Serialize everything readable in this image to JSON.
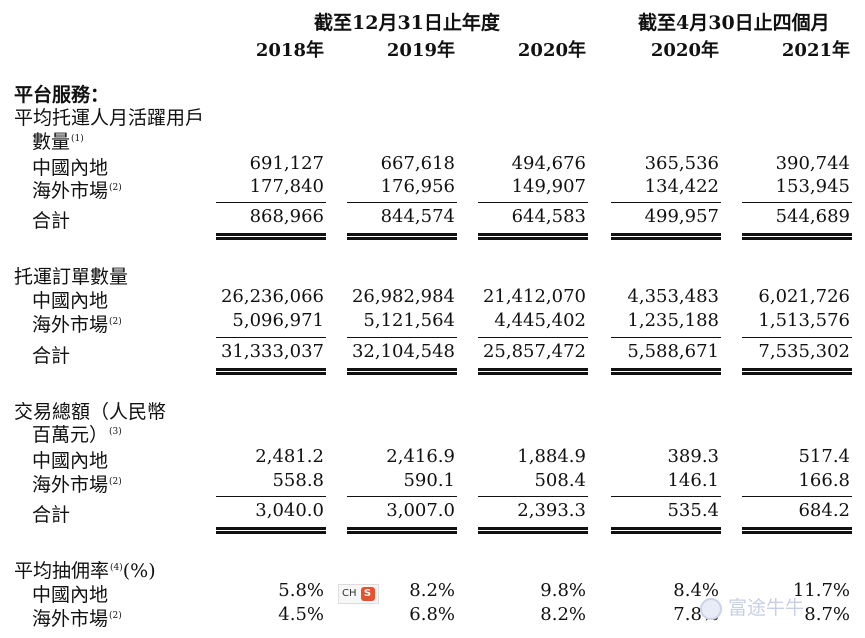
{
  "header": {
    "group_fy": "截至12月31日止年度",
    "group_4m": "截至4月30日止四個月",
    "years": [
      "2018年",
      "2019年",
      "2020年",
      "2020年",
      "2021年"
    ]
  },
  "sections": {
    "platform": {
      "title": "平台服務："
    },
    "mau": {
      "label_line1": "平均托運人月活躍用戶",
      "label_line2": "數量",
      "footnote": "(1)",
      "rows": {
        "mainland": {
          "label": "中國內地",
          "values": [
            "691,127",
            "667,618",
            "494,676",
            "365,536",
            "390,744"
          ]
        },
        "overseas": {
          "label": "海外市場",
          "footnote": "(2)",
          "values": [
            "177,840",
            "176,956",
            "149,907",
            "134,422",
            "153,945"
          ]
        },
        "total": {
          "label": "合計",
          "values": [
            "868,966",
            "844,574",
            "644,583",
            "499,957",
            "544,689"
          ]
        }
      }
    },
    "orders": {
      "label": "托運訂單數量",
      "rows": {
        "mainland": {
          "label": "中國內地",
          "values": [
            "26,236,066",
            "26,982,984",
            "21,412,070",
            "4,353,483",
            "6,021,726"
          ]
        },
        "overseas": {
          "label": "海外市場",
          "footnote": "(2)",
          "values": [
            "5,096,971",
            "5,121,564",
            "4,445,402",
            "1,235,188",
            "1,513,576"
          ]
        },
        "total": {
          "label": "合計",
          "values": [
            "31,333,037",
            "32,104,548",
            "25,857,472",
            "5,588,671",
            "7,535,302"
          ]
        }
      }
    },
    "gtv": {
      "label_line1": "交易總額（人民幣",
      "label_line2": "百萬元）",
      "footnote": "(3)",
      "rows": {
        "mainland": {
          "label": "中國內地",
          "values": [
            "2,481.2",
            "2,416.9",
            "1,884.9",
            "389.3",
            "517.4"
          ]
        },
        "overseas": {
          "label": "海外市場",
          "footnote": "(2)",
          "values": [
            "558.8",
            "590.1",
            "508.4",
            "146.1",
            "166.8"
          ]
        },
        "total": {
          "label": "合計",
          "values": [
            "3,040.0",
            "3,007.0",
            "2,393.3",
            "535.4",
            "684.2"
          ]
        }
      }
    },
    "commission": {
      "label": "平均抽佣率",
      "footnote": "(4)",
      "unit": "(%)",
      "rows": {
        "mainland": {
          "label": "中國內地",
          "values": [
            "5.8%",
            "8.2%",
            "9.8%",
            "8.4%",
            "11.7%"
          ]
        },
        "overseas": {
          "label": "海外市場",
          "footnote": "(2)",
          "values": [
            "4.5%",
            "6.8%",
            "8.2%",
            "7.8%",
            "8.7%"
          ]
        }
      }
    }
  },
  "overlays": {
    "ch_badge": {
      "text": "CH",
      "icon": "S"
    },
    "watermark": "富途牛牛"
  }
}
